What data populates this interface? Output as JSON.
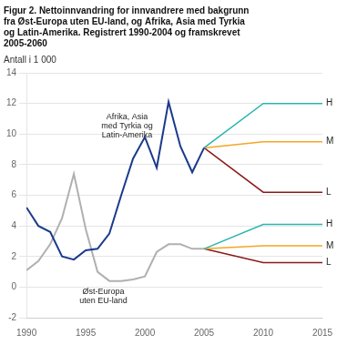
{
  "chart_data": {
    "type": "line",
    "title": [
      "Figur 2. Nettoinnvandring for innvandrere med bakgrunn",
      "fra Øst-Europa uten EU-land, og Afrika, Asia med Tyrkia",
      "og Latin-Amerika. Registrert 1990-2004 og framskrevet",
      "2005-2060"
    ],
    "y_label": "Antall i 1 000",
    "xlim": [
      1990,
      2015
    ],
    "ylim": [
      -2,
      14
    ],
    "xticks": [
      1990,
      1995,
      2000,
      2005,
      2010,
      2015
    ],
    "yticks": [
      -2,
      0,
      2,
      4,
      6,
      8,
      10,
      12,
      14
    ],
    "grid": "y",
    "series": [
      {
        "color": "#1a3a8c",
        "x": [
          1990,
          1991,
          1992,
          1993,
          1994,
          1995,
          1996,
          1997,
          1998,
          1999,
          2000,
          2001,
          2002,
          2003,
          2004,
          2005
        ],
        "values": [
          5.2,
          4.0,
          3.6,
          2.0,
          1.8,
          2.4,
          2.5,
          3.5,
          6.0,
          8.4,
          9.8,
          7.8,
          12.1,
          9.2,
          7.5,
          9.1
        ]
      },
      {
        "color": "#b0b0b0",
        "x": [
          1990,
          1991,
          1992,
          1993,
          1994,
          1995,
          1996,
          1997,
          1998,
          1999,
          2000,
          2001,
          2002,
          2003,
          2004,
          2005
        ],
        "values": [
          1.1,
          1.7,
          2.8,
          4.5,
          7.4,
          3.8,
          1.0,
          0.4,
          0.4,
          0.5,
          0.7,
          2.3,
          2.8,
          2.8,
          2.5,
          2.5
        ]
      },
      {
        "color": "#2ab5b0",
        "x": [
          2005,
          2010,
          2015
        ],
        "values": [
          9.1,
          12.0,
          12.0
        ]
      },
      {
        "color": "#f5a623",
        "x": [
          2005,
          2010,
          2015
        ],
        "values": [
          9.1,
          9.5,
          9.5
        ]
      },
      {
        "color": "#8b1a1a",
        "x": [
          2005,
          2010,
          2015
        ],
        "values": [
          9.1,
          6.2,
          6.2
        ]
      },
      {
        "color": "#2ab5b0",
        "x": [
          2005,
          2010,
          2015
        ],
        "values": [
          2.5,
          4.1,
          4.1
        ]
      },
      {
        "color": "#f5a623",
        "x": [
          2005,
          2010,
          2015
        ],
        "values": [
          2.5,
          2.7,
          2.7
        ]
      },
      {
        "color": "#8b1a1a",
        "x": [
          2005,
          2010,
          2015
        ],
        "values": [
          2.5,
          1.6,
          1.6
        ]
      }
    ],
    "annotations": [
      {
        "text": "Afrika, Asia\nmed Tyrkia og\nLatin-Amerika",
        "x": 1998.5,
        "y": 10.5
      },
      {
        "text": "Øst-Europa\nuten EU-land",
        "x": 1996.5,
        "y": -0.6
      },
      {
        "text": "H",
        "x": 2015,
        "y": 12.0
      },
      {
        "text": "M",
        "x": 2015,
        "y": 9.5
      },
      {
        "text": "L",
        "x": 2015,
        "y": 6.2
      },
      {
        "text": "H",
        "x": 2015,
        "y": 4.1
      },
      {
        "text": "M",
        "x": 2015,
        "y": 2.7
      },
      {
        "text": "L",
        "x": 2015,
        "y": 1.6
      }
    ]
  }
}
